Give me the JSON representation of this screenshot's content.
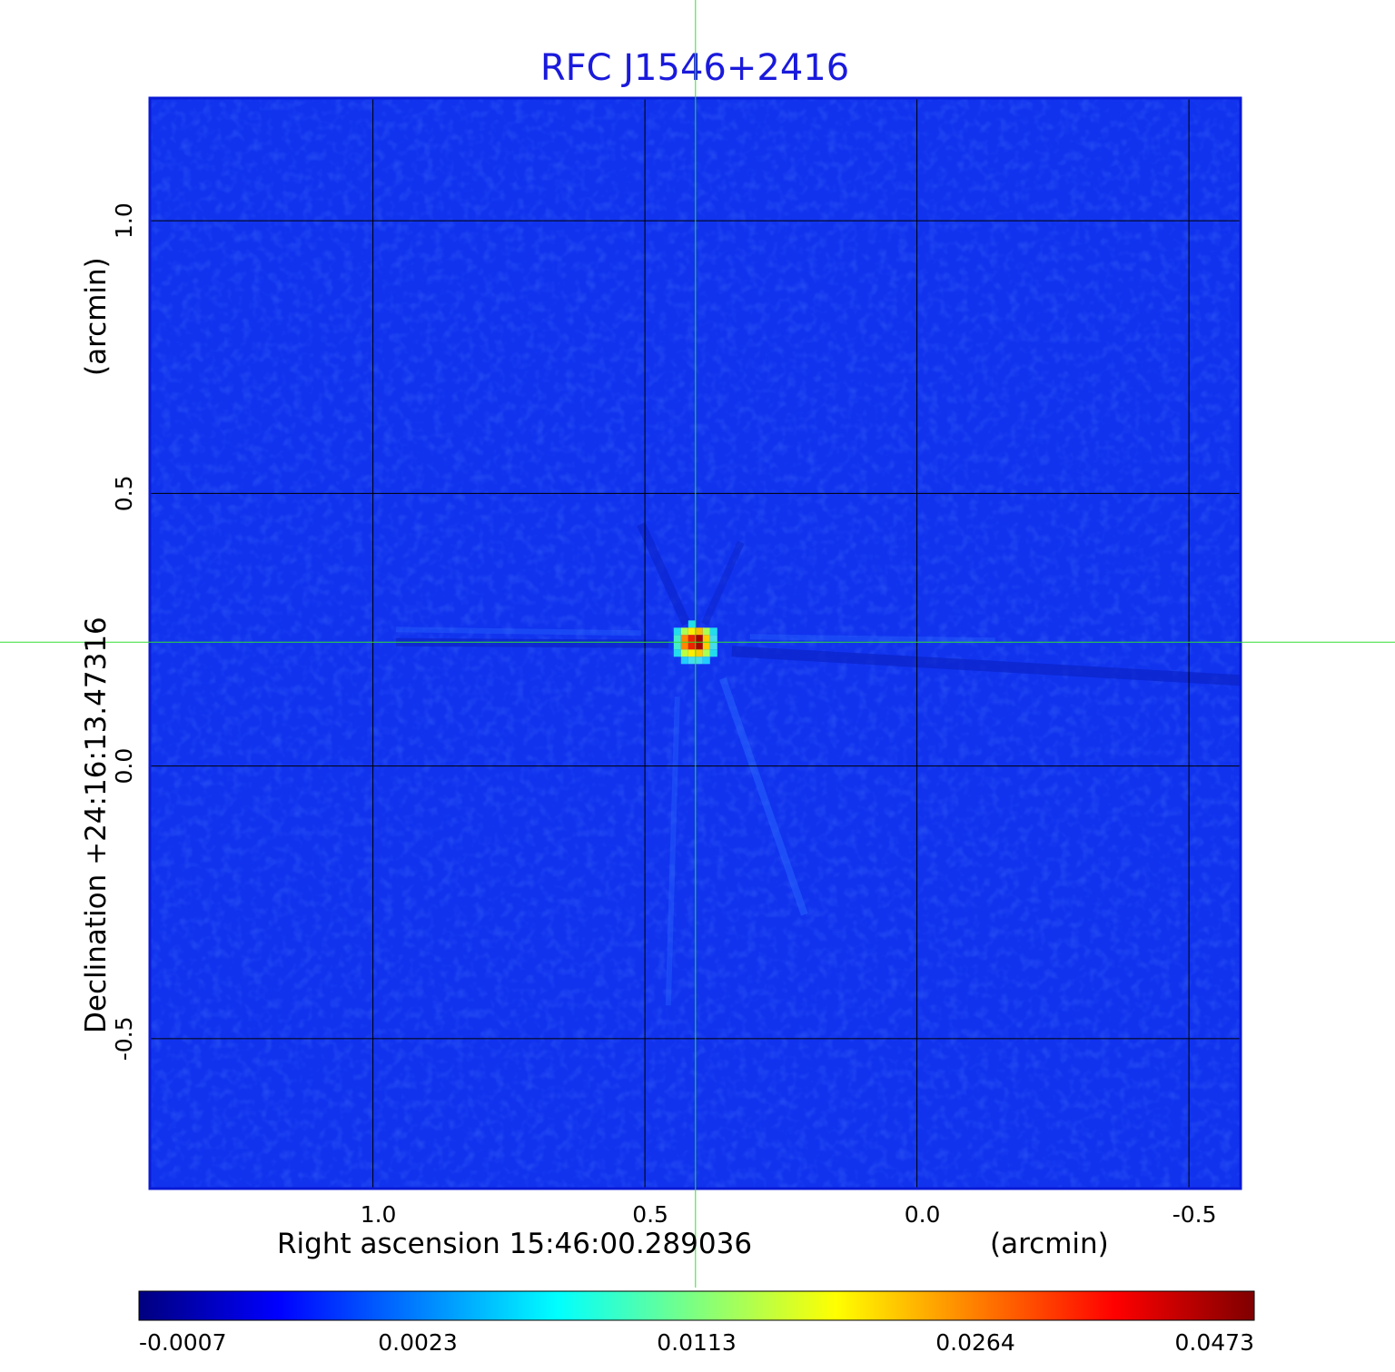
{
  "chart_data": {
    "type": "heatmap",
    "title": "RFC J1546+2416",
    "xlabel": "Right ascension  15:46:00.289036",
    "xunit": "(arcmin)",
    "ylabel": "Declination  +24:16:13.47316",
    "yunit": "(arcmin)",
    "x_ticks": [
      1.0,
      0.5,
      0.0,
      -0.5
    ],
    "x_tick_labels": [
      "1.0",
      "0.5",
      "0.0",
      "-0.5"
    ],
    "y_ticks": [
      1.0,
      0.5,
      0.0,
      -0.5
    ],
    "y_tick_labels": [
      "1.0",
      "0.5",
      "0.0",
      "-0.5"
    ],
    "xlim": [
      1.41,
      -0.595
    ],
    "ylim": [
      -0.775,
      1.225
    ],
    "grid": true,
    "x_inverted": true,
    "source_position": {
      "x": 0.407,
      "y": 0.227
    },
    "peak_value": 0.0473,
    "colorbar": {
      "ticks": [
        -0.0007,
        0.0023,
        0.0113,
        0.0264,
        0.0473
      ],
      "tick_labels": [
        "-0.0007",
        "0.0023",
        "0.0113",
        "0.0264",
        "0.0473"
      ],
      "colormap": "jet",
      "colors": [
        "#00007f",
        "#0000ff",
        "#007fff",
        "#00ffff",
        "#7fff7f",
        "#ffff00",
        "#ff7f00",
        "#ff0000",
        "#7f0000"
      ]
    },
    "background_color": "#1133ee",
    "crosshair_color": "#33dd33",
    "grid_color": "#000000"
  }
}
